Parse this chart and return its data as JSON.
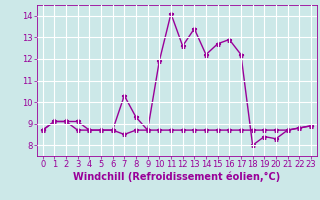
{
  "xlabel": "Windchill (Refroidissement éolien,°C)",
  "x": [
    0,
    1,
    2,
    3,
    4,
    5,
    6,
    7,
    8,
    9,
    10,
    11,
    12,
    13,
    14,
    15,
    16,
    17,
    18,
    19,
    20,
    21,
    22,
    23
  ],
  "line1_y": [
    8.7,
    9.1,
    9.1,
    8.7,
    8.7,
    8.7,
    8.7,
    8.5,
    8.7,
    8.7,
    8.7,
    8.7,
    8.7,
    8.7,
    8.7,
    8.7,
    8.7,
    8.7,
    8.7,
    8.7,
    8.7,
    8.7,
    8.8,
    8.9
  ],
  "line2_y": [
    8.7,
    9.1,
    9.1,
    9.1,
    8.7,
    8.7,
    8.7,
    10.3,
    9.3,
    8.7,
    11.9,
    14.1,
    12.6,
    13.4,
    12.2,
    12.7,
    12.9,
    12.2,
    8.0,
    8.4,
    8.3,
    8.7,
    8.8,
    8.9
  ],
  "line_color": "#990099",
  "bg_color": "#cce8e8",
  "grid_color": "#ffffff",
  "ylim_min": 7.5,
  "ylim_max": 14.5,
  "xlim_min": -0.5,
  "xlim_max": 23.5,
  "yticks": [
    8,
    9,
    10,
    11,
    12,
    13,
    14
  ],
  "xticks": [
    0,
    1,
    2,
    3,
    4,
    5,
    6,
    7,
    8,
    9,
    10,
    11,
    12,
    13,
    14,
    15,
    16,
    17,
    18,
    19,
    20,
    21,
    22,
    23
  ],
  "tick_fontsize": 6,
  "xlabel_fontsize": 7,
  "marker": "*",
  "markersize": 3.5,
  "linewidth": 1.0
}
